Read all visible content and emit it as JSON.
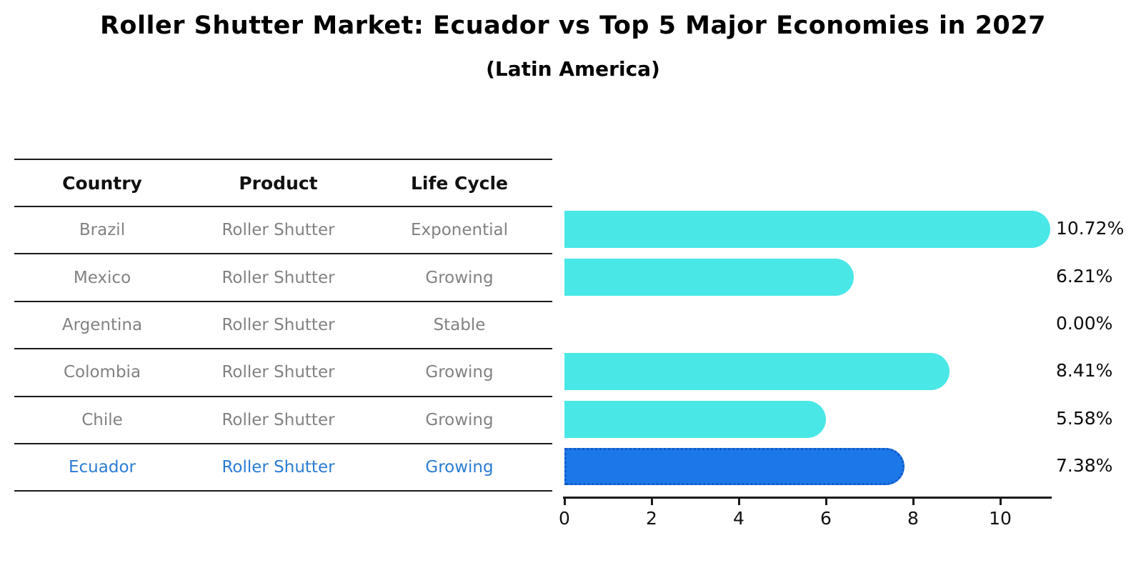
{
  "title": "Roller Shutter Market: Ecuador vs Top 5 Major Economies in 2027",
  "subtitle": "(Latin America)",
  "table": {
    "headers": [
      "Country",
      "Product",
      "Life Cycle"
    ],
    "rows": [
      {
        "country": "Brazil",
        "product": "Roller Shutter",
        "life_cycle": "Exponential",
        "highlight": false
      },
      {
        "country": "Mexico",
        "product": "Roller Shutter",
        "life_cycle": "Growing",
        "highlight": false
      },
      {
        "country": "Argentina",
        "product": "Roller Shutter",
        "life_cycle": "Stable",
        "highlight": false
      },
      {
        "country": "Colombia",
        "product": "Roller Shutter",
        "life_cycle": "Growing",
        "highlight": false
      },
      {
        "country": "Chile",
        "product": "Roller Shutter",
        "life_cycle": "Growing",
        "highlight": false
      },
      {
        "country": "Ecuador",
        "product": "Roller Shutter",
        "life_cycle": "Growing",
        "highlight": true
      }
    ]
  },
  "chart_data": {
    "type": "bar",
    "orientation": "horizontal",
    "title": "Roller Shutter Market: Ecuador vs Top 5 Major Economies in 2027",
    "subtitle": "(Latin America)",
    "categories": [
      "Brazil",
      "Mexico",
      "Argentina",
      "Colombia",
      "Chile",
      "Ecuador"
    ],
    "values": [
      10.72,
      6.21,
      0.0,
      8.41,
      5.58,
      7.38
    ],
    "value_labels": [
      "10.72%",
      "6.21%",
      "0.00%",
      "8.41%",
      "5.58%",
      "7.38%"
    ],
    "highlight_index": 5,
    "x_ticks": [
      0,
      2,
      4,
      6,
      8,
      10
    ],
    "xlim": [
      0,
      11.2
    ],
    "xlabel": "",
    "ylabel": "",
    "grid": false,
    "legend": false
  },
  "colors": {
    "bar": "#4ae7e7",
    "highlight_bar": "#1c78e8",
    "highlight_border": "#1359c8",
    "highlight_text": "#2b7cd3",
    "row_text": "#828282",
    "header_text": "#111111",
    "axis": "#1a1a1a"
  }
}
